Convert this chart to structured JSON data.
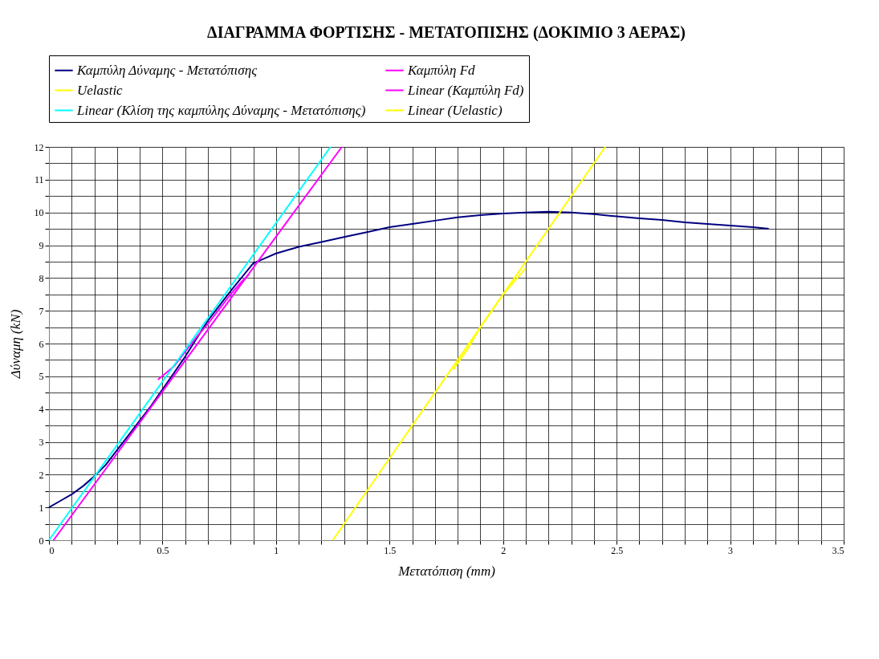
{
  "chart_data": {
    "type": "line",
    "title": "ΔΙΑΓΡΑΜΜΑ ΦΟΡΤΙΣΗΣ - ΜΕΤΑΤΟΠΙΣΗΣ (ΔΟΚΙΜΙΟ 3 ΑΕΡΑΣ)",
    "xlabel": "Μετατόπιση (mm)",
    "ylabel": "Δύναμη (kN)",
    "xlim": [
      0,
      3.5
    ],
    "ylim": [
      0,
      12
    ],
    "xticks": [
      0,
      {
        "value": 0.1,
        "label": null
      },
      {
        "value": 0.2,
        "label": null
      },
      {
        "value": 0.3,
        "label": null
      },
      {
        "value": 0.4,
        "label": null
      },
      0.5,
      {
        "value": 0.6,
        "label": null
      },
      {
        "value": 0.7,
        "label": null
      },
      {
        "value": 0.8,
        "label": null
      },
      {
        "value": 0.9,
        "label": null
      },
      1,
      {
        "value": 1.1,
        "label": null
      },
      {
        "value": 1.2,
        "label": null
      },
      {
        "value": 1.3,
        "label": null
      },
      {
        "value": 1.4,
        "label": null
      },
      1.5,
      {
        "value": 1.6,
        "label": null
      },
      {
        "value": 1.7,
        "label": null
      },
      {
        "value": 1.8,
        "label": null
      },
      {
        "value": 1.9,
        "label": null
      },
      2,
      {
        "value": 2.1,
        "label": null
      },
      {
        "value": 2.2,
        "label": null
      },
      {
        "value": 2.3,
        "label": null
      },
      {
        "value": 2.4,
        "label": null
      },
      2.5,
      {
        "value": 2.6,
        "label": null
      },
      {
        "value": 2.7,
        "label": null
      },
      {
        "value": 2.8,
        "label": null
      },
      {
        "value": 2.9,
        "label": null
      },
      3,
      {
        "value": 3.1,
        "label": null
      },
      {
        "value": 3.2,
        "label": null
      },
      {
        "value": 3.3,
        "label": null
      },
      {
        "value": 3.4,
        "label": null
      },
      3.5
    ],
    "yticks": [
      0,
      {
        "value": 0.5,
        "label": null
      },
      1,
      {
        "value": 1.5,
        "label": null
      },
      2,
      {
        "value": 2.5,
        "label": null
      },
      3,
      {
        "value": 3.5,
        "label": null
      },
      4,
      {
        "value": 4.5,
        "label": null
      },
      5,
      {
        "value": 5.5,
        "label": null
      },
      6,
      {
        "value": 6.5,
        "label": null
      },
      7,
      {
        "value": 7.5,
        "label": null
      },
      8,
      {
        "value": 8.5,
        "label": null
      },
      9,
      {
        "value": 9.5,
        "label": null
      },
      10,
      {
        "value": 10.5,
        "label": null
      },
      11,
      {
        "value": 11.5,
        "label": null
      },
      12
    ],
    "grid": true,
    "legend": "top",
    "marker": "none",
    "line_style": "solid",
    "series": [
      {
        "name": "Καμπύλη Δύναμης - Μετατόπισης",
        "color": "#000080",
        "x": [
          0,
          0.05,
          0.1,
          0.15,
          0.2,
          0.25,
          0.3,
          0.35,
          0.4,
          0.45,
          0.5,
          0.55,
          0.6,
          0.7,
          0.8,
          0.9,
          0.95,
          1.0,
          1.1,
          1.2,
          1.3,
          1.4,
          1.5,
          1.6,
          1.7,
          1.8,
          1.9,
          2.0,
          2.1,
          2.2,
          2.3,
          2.4,
          2.5,
          2.6,
          2.7,
          2.8,
          2.9,
          3.0,
          3.1,
          3.17
        ],
        "values": [
          1.0,
          1.2,
          1.4,
          1.65,
          1.95,
          2.3,
          2.75,
          3.2,
          3.65,
          4.1,
          4.6,
          5.1,
          5.6,
          6.7,
          7.6,
          8.45,
          8.6,
          8.75,
          8.95,
          9.1,
          9.25,
          9.4,
          9.55,
          9.65,
          9.75,
          9.85,
          9.92,
          9.97,
          10.0,
          10.02,
          10.0,
          9.95,
          9.88,
          9.82,
          9.77,
          9.7,
          9.65,
          9.6,
          9.55,
          9.5
        ]
      },
      {
        "name": "Καμπύλη Fd",
        "color": "#ff00ff",
        "x": [
          0.48,
          0.55,
          0.6,
          0.65,
          0.7,
          0.75,
          0.8,
          0.85,
          0.88
        ],
        "values": [
          4.9,
          5.3,
          5.75,
          6.2,
          6.6,
          7.05,
          7.5,
          7.9,
          8.1
        ]
      },
      {
        "name": "Uelastic",
        "color": "#ffff00",
        "x": [
          1.78,
          1.85,
          1.9,
          1.95,
          2.0,
          2.05,
          2.1
        ],
        "values": [
          5.2,
          5.9,
          6.5,
          7.0,
          7.5,
          7.9,
          8.3
        ]
      },
      {
        "name": "Linear (Καμπύλη Fd)",
        "color": "#ff00ff",
        "type": "line",
        "x": [
          0.02,
          1.29
        ],
        "values": [
          0,
          12
        ]
      },
      {
        "name": "Linear (Κλίση της καμπύλης Δύναμης - Μετατόπισης)",
        "color": "#00ffff",
        "type": "line",
        "x": [
          0,
          1.24
        ],
        "values": [
          0,
          12
        ]
      },
      {
        "name": "Linear (Uelastic)",
        "color": "#ffff00",
        "type": "line",
        "x": [
          1.25,
          2.45
        ],
        "values": [
          0,
          12
        ]
      }
    ]
  }
}
